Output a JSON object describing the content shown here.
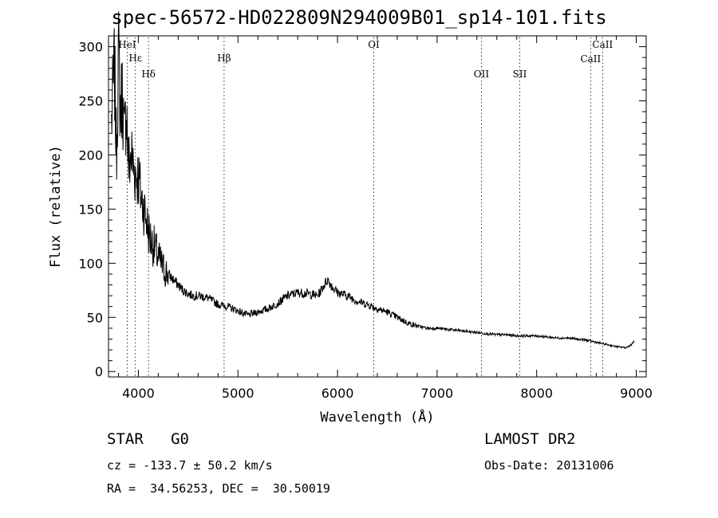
{
  "chart_data": {
    "type": "line",
    "title": "spec-56572-HD022809N294009B01_sp14-101.fits",
    "xlabel": "Wavelength (Å)",
    "ylabel": "Flux (relative)",
    "xlim": [
      3700,
      9100
    ],
    "ylim": [
      -5,
      310
    ],
    "xticks": [
      4000,
      5000,
      6000,
      7000,
      8000,
      9000
    ],
    "yticks": [
      0,
      50,
      100,
      150,
      200,
      250,
      300
    ],
    "grid": false,
    "line_color": "#000000",
    "series": [
      {
        "x": [
          3730,
          3760,
          3780,
          3800,
          3820,
          3840,
          3860,
          3880,
          3900,
          3930,
          3960,
          4000,
          4030,
          4060,
          4100,
          4130,
          4160,
          4200,
          4250,
          4300,
          4350,
          4400,
          4450,
          4500,
          4550,
          4600,
          4700,
          4800,
          4900,
          5000,
          5100,
          5200,
          5300,
          5400,
          5500,
          5600,
          5700,
          5800,
          5900,
          5950,
          6000,
          6100,
          6200,
          6300,
          6400,
          6500,
          6600,
          6700,
          6800,
          6900,
          7000,
          7100,
          7200,
          7300,
          7400,
          7500,
          7600,
          7700,
          7800,
          7900,
          8000,
          8100,
          8200,
          8300,
          8400,
          8500,
          8600,
          8700,
          8800,
          8900,
          8950,
          8980
        ],
        "y": [
          230,
          280,
          200,
          295,
          240,
          260,
          210,
          250,
          190,
          200,
          185,
          180,
          160,
          150,
          130,
          120,
          115,
          105,
          95,
          90,
          85,
          80,
          75,
          72,
          70,
          70,
          68,
          62,
          60,
          56,
          52,
          55,
          58,
          63,
          70,
          73,
          72,
          70,
          85,
          78,
          73,
          70,
          65,
          62,
          58,
          55,
          50,
          45,
          42,
          40,
          40,
          39,
          38,
          37,
          36,
          35,
          34,
          34,
          33,
          33,
          33,
          32,
          31,
          31,
          30,
          29,
          27,
          25,
          23,
          22,
          25,
          28
        ]
      }
    ],
    "annotations": [
      {
        "label": "HeI",
        "x": 3888
      },
      {
        "label": "Hε",
        "x": 3970
      },
      {
        "label": "Hδ",
        "x": 4102
      },
      {
        "label": "Hβ",
        "x": 4861
      },
      {
        "label": "OI",
        "x": 6364
      },
      {
        "label": "OII",
        "x": 7445
      },
      {
        "label": "SII",
        "x": 7830
      },
      {
        "label": "CaII",
        "x": 8542
      },
      {
        "label": "CaII",
        "x": 8662
      }
    ]
  },
  "info": {
    "class_line": "STAR   G0",
    "survey": "LAMOST DR2",
    "cz_line": "cz = -133.7 ± 50.2 km/s",
    "obs_date": "Obs-Date: 20131006",
    "radec_line": "RA =  34.56253, DEC =  30.50019"
  }
}
